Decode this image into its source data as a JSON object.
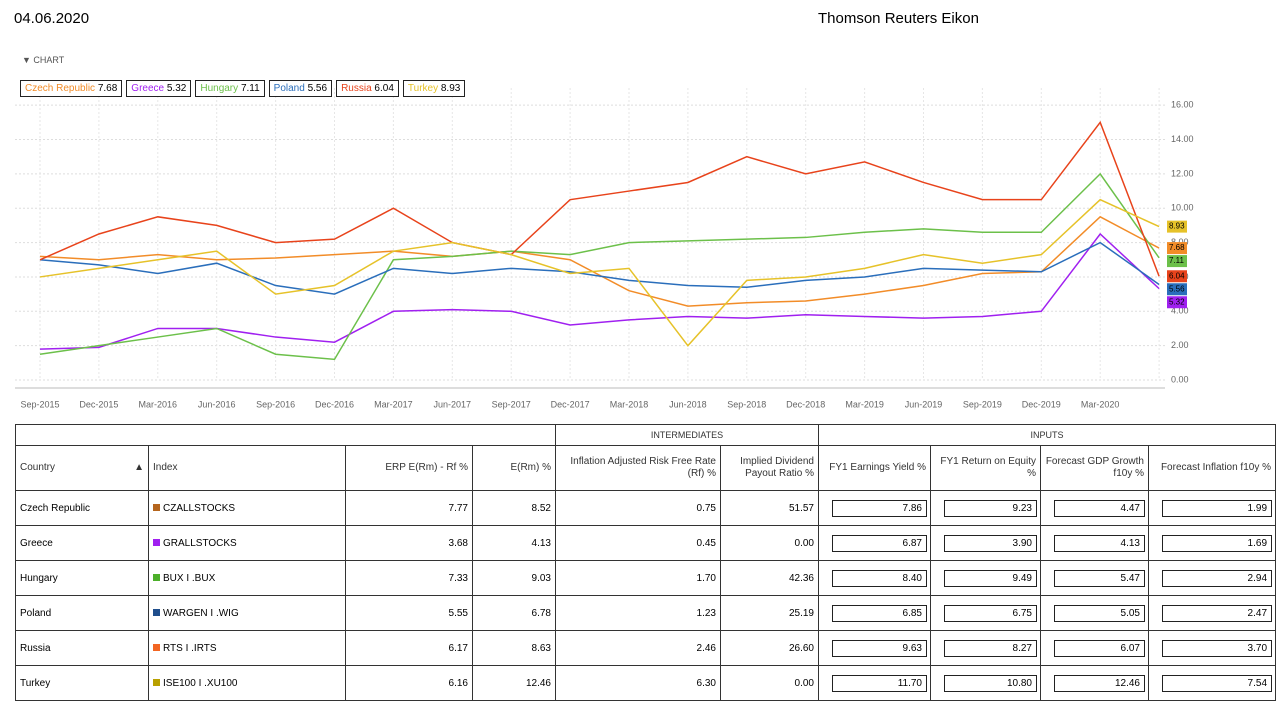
{
  "header": {
    "date": "04.06.2020",
    "source": "Thomson Reuters Eikon"
  },
  "chart_section": "CHART",
  "chart_data": {
    "type": "line",
    "categories": [
      "Sep-2015",
      "Dec-2015",
      "Mar-2016",
      "Jun-2016",
      "Sep-2016",
      "Dec-2016",
      "Mar-2017",
      "Jun-2017",
      "Sep-2017",
      "Dec-2017",
      "Mar-2018",
      "Jun-2018",
      "Sep-2018",
      "Dec-2018",
      "Mar-2019",
      "Jun-2019",
      "Sep-2019",
      "Dec-2019",
      "Mar-2020",
      null
    ],
    "series": [
      {
        "name": "Czech Republic",
        "color": "#f28c28",
        "values": [
          7.2,
          7.0,
          7.3,
          7.0,
          7.1,
          7.3,
          7.5,
          7.2,
          7.5,
          7.0,
          5.2,
          4.3,
          4.5,
          4.6,
          5.0,
          5.5,
          6.2,
          6.3,
          9.5,
          7.68
        ]
      },
      {
        "name": "Greece",
        "color": "#a020f0",
        "values": [
          1.8,
          1.9,
          3.0,
          3.0,
          2.5,
          2.2,
          4.0,
          4.1,
          4.0,
          3.2,
          3.5,
          3.7,
          3.6,
          3.8,
          3.7,
          3.6,
          3.7,
          4.0,
          8.5,
          5.32
        ]
      },
      {
        "name": "Hungary",
        "color": "#6cc04a",
        "values": [
          1.5,
          2.0,
          2.5,
          3.0,
          1.5,
          1.2,
          7.0,
          7.2,
          7.5,
          7.3,
          8.0,
          8.1,
          8.2,
          8.3,
          8.6,
          8.8,
          8.6,
          8.6,
          12.0,
          7.11
        ]
      },
      {
        "name": "Poland",
        "color": "#2a6ebb",
        "values": [
          7.0,
          6.7,
          6.2,
          6.8,
          5.5,
          5.0,
          6.5,
          6.2,
          6.5,
          6.3,
          5.8,
          5.5,
          5.4,
          5.8,
          6.0,
          6.5,
          6.4,
          6.3,
          8.0,
          5.56
        ]
      },
      {
        "name": "Russia",
        "color": "#e8431b",
        "values": [
          7.0,
          8.5,
          9.5,
          9.0,
          8.0,
          8.2,
          10.0,
          8.0,
          7.3,
          10.5,
          11.0,
          11.5,
          13.0,
          12.0,
          12.7,
          11.5,
          10.5,
          10.5,
          15.0,
          6.04
        ]
      },
      {
        "name": "Turkey",
        "color": "#e6c229",
        "values": [
          6.0,
          6.5,
          7.0,
          7.5,
          5.0,
          5.5,
          7.5,
          8.0,
          7.3,
          6.2,
          6.5,
          2.0,
          5.8,
          6.0,
          6.5,
          7.3,
          6.8,
          7.3,
          10.5,
          8.93
        ]
      }
    ],
    "ylim": [
      0,
      17
    ],
    "yticks": [
      {
        "value": 0,
        "label": "0.00"
      },
      {
        "value": 2,
        "label": "2.00"
      },
      {
        "value": 4,
        "label": "4.00"
      },
      {
        "value": 6,
        "label": "6.00"
      },
      {
        "value": 8,
        "label": "8.00"
      },
      {
        "value": 10,
        "label": "10.00"
      },
      {
        "value": 12,
        "label": "12.00"
      },
      {
        "value": 14,
        "label": "14.00"
      },
      {
        "value": 16,
        "label": "16.00"
      }
    ],
    "grid": true
  },
  "table": {
    "groups": [
      "INTERMEDIATES",
      "INPUTS"
    ],
    "columns": [
      "Country",
      "Index",
      "ERP E(Rm) - Rf %",
      "E(Rm) %",
      "Inflation Adjusted Risk Free Rate (Rf) %",
      "Implied Dividend Payout Ratio %",
      "FY1 Earnings Yield %",
      "FY1 Return on Equity %",
      "Forecast GDP Growth f10y %",
      "Forecast Inflation f10y %"
    ],
    "rows": [
      {
        "country": "Czech Republic",
        "index": "CZALLSTOCKS",
        "color": "#b5651d",
        "cells": [
          "7.77",
          "8.52",
          "0.75",
          "51.57",
          "7.86",
          "9.23",
          "4.47",
          "1.99"
        ]
      },
      {
        "country": "Greece",
        "index": "GRALLSTOCKS",
        "color": "#a020f0",
        "cells": [
          "3.68",
          "4.13",
          "0.45",
          "0.00",
          "6.87",
          "3.90",
          "4.13",
          "1.69"
        ]
      },
      {
        "country": "Hungary",
        "index": "BUX I .BUX",
        "color": "#4caf2a",
        "cells": [
          "7.33",
          "9.03",
          "1.70",
          "42.36",
          "8.40",
          "9.49",
          "5.47",
          "2.94"
        ]
      },
      {
        "country": "Poland",
        "index": "WARGEN I .WIG",
        "color": "#1f4e8c",
        "cells": [
          "5.55",
          "6.78",
          "1.23",
          "25.19",
          "6.85",
          "6.75",
          "5.05",
          "2.47"
        ]
      },
      {
        "country": "Russia",
        "index": "RTS I .IRTS",
        "color": "#f26522",
        "cells": [
          "6.17",
          "8.63",
          "2.46",
          "26.60",
          "9.63",
          "8.27",
          "6.07",
          "3.70"
        ]
      },
      {
        "country": "Turkey",
        "index": "ISE100 I .XU100",
        "color": "#b8a000",
        "cells": [
          "6.16",
          "12.46",
          "6.30",
          "0.00",
          "11.70",
          "10.80",
          "12.46",
          "7.54"
        ]
      }
    ]
  }
}
